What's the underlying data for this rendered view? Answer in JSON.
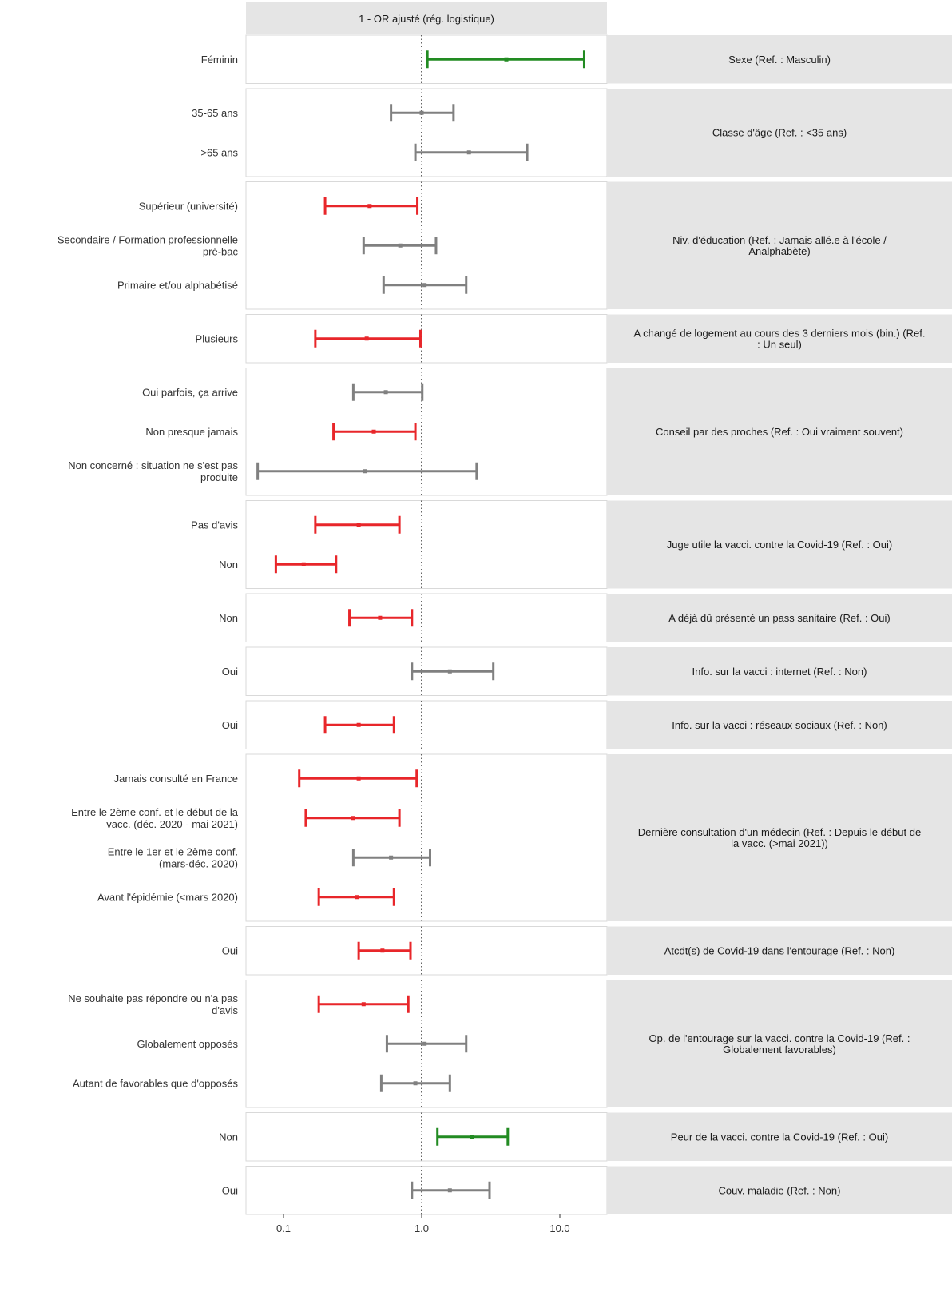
{
  "chart_data": {
    "type": "forest",
    "title": "1 - OR ajusté (rég. logistique)",
    "x_scale": "log",
    "xlim": [
      0.06,
      20
    ],
    "x_ticks": [
      {
        "value": 0.1,
        "label": "0.1"
      },
      {
        "value": 1.0,
        "label": "1.0"
      },
      {
        "value": 10.0,
        "label": "10.0"
      }
    ],
    "reference_line": 1.0,
    "colors": {
      "significant_high": "#228B22",
      "significant_low": "#E8262A",
      "not_significant": "#808080",
      "strip_background": "#E5E5E5",
      "panel_border": "#D9D9D9"
    },
    "groups": [
      {
        "label": "Sexe (Ref. : Masculin)",
        "rows": [
          {
            "label": "Féminin",
            "or": 4.1,
            "low": 1.1,
            "high": 15.0,
            "color": "significant_high"
          }
        ]
      },
      {
        "label": "Classe d'âge (Ref. : <35 ans)",
        "rows": [
          {
            "label": "35-65 ans",
            "or": 1.0,
            "low": 0.6,
            "high": 1.7,
            "color": "not_significant"
          },
          {
            "label": ">65 ans",
            "or": 2.2,
            "low": 0.9,
            "high": 5.8,
            "color": "not_significant"
          }
        ]
      },
      {
        "label": "Niv. d'éducation (Ref. : Jamais allé.e à l'école / Analphabète)",
        "rows": [
          {
            "label": "Supérieur (université)",
            "or": 0.42,
            "low": 0.2,
            "high": 0.93,
            "color": "significant_low"
          },
          {
            "label": "Secondaire / Formation professionnelle pré-bac",
            "or": 0.7,
            "low": 0.38,
            "high": 1.27,
            "color": "not_significant"
          },
          {
            "label": "Primaire et/ou alphabétisé",
            "or": 1.05,
            "low": 0.53,
            "high": 2.1,
            "color": "not_significant"
          }
        ]
      },
      {
        "label": "A changé de logement au cours des 3 derniers mois (bin.) (Ref. : Un seul)",
        "rows": [
          {
            "label": "Plusieurs",
            "or": 0.4,
            "low": 0.17,
            "high": 0.98,
            "color": "significant_low"
          }
        ]
      },
      {
        "label": "Conseil par des proches (Ref. : Oui vraiment souvent)",
        "rows": [
          {
            "label": "Oui parfois, ça arrive",
            "or": 0.55,
            "low": 0.32,
            "high": 1.01,
            "color": "not_significant"
          },
          {
            "label": "Non presque jamais",
            "or": 0.45,
            "low": 0.23,
            "high": 0.9,
            "color": "significant_low"
          },
          {
            "label": "Non concerné : situation ne s'est pas produite",
            "or": 0.39,
            "low": 0.065,
            "high": 2.5,
            "color": "not_significant"
          }
        ]
      },
      {
        "label": "Juge utile la vacci. contre la Covid-19 (Ref. : Oui)",
        "rows": [
          {
            "label": "Pas d'avis",
            "or": 0.35,
            "low": 0.17,
            "high": 0.69,
            "color": "significant_low"
          },
          {
            "label": "Non",
            "or": 0.14,
            "low": 0.088,
            "high": 0.24,
            "color": "significant_low"
          }
        ]
      },
      {
        "label": "A déjà dû présenté un pass sanitaire (Ref. : Oui)",
        "rows": [
          {
            "label": "Non",
            "or": 0.5,
            "low": 0.3,
            "high": 0.85,
            "color": "significant_low"
          }
        ]
      },
      {
        "label": "Info. sur la vacci : internet (Ref. : Non)",
        "rows": [
          {
            "label": "Oui",
            "or": 1.6,
            "low": 0.85,
            "high": 3.3,
            "color": "not_significant"
          }
        ]
      },
      {
        "label": "Info. sur la vacci : réseaux sociaux (Ref. : Non)",
        "rows": [
          {
            "label": "Oui",
            "or": 0.35,
            "low": 0.2,
            "high": 0.63,
            "color": "significant_low"
          }
        ]
      },
      {
        "label": "Dernière consultation d'un médecin (Ref. : Depuis le début de la vacc. (>mai 2021))",
        "rows": [
          {
            "label": "Jamais consulté en France",
            "or": 0.35,
            "low": 0.13,
            "high": 0.92,
            "color": "significant_low"
          },
          {
            "label": "Entre le 2ème conf. et le début de la vacc. (déc. 2020 - mai 2021)",
            "or": 0.32,
            "low": 0.145,
            "high": 0.69,
            "color": "significant_low"
          },
          {
            "label": "Entre le 1er et le 2ème conf. (mars-déc. 2020)",
            "or": 0.6,
            "low": 0.32,
            "high": 1.15,
            "color": "not_significant"
          },
          {
            "label": "Avant l'épidémie (<mars 2020)",
            "or": 0.34,
            "low": 0.18,
            "high": 0.63,
            "color": "significant_low"
          }
        ]
      },
      {
        "label": "Atcdt(s) de Covid-19 dans l'entourage (Ref. : Non)",
        "rows": [
          {
            "label": "Oui",
            "or": 0.52,
            "low": 0.35,
            "high": 0.83,
            "color": "significant_low"
          }
        ]
      },
      {
        "label": "Op. de l'entourage sur la vacci. contre la Covid-19 (Ref. : Globalement favorables)",
        "rows": [
          {
            "label": "Ne souhaite pas répondre ou n'a pas d'avis",
            "or": 0.38,
            "low": 0.18,
            "high": 0.8,
            "color": "significant_low"
          },
          {
            "label": "Globalement opposés",
            "or": 1.05,
            "low": 0.56,
            "high": 2.1,
            "color": "not_significant"
          },
          {
            "label": "Autant de favorables que d'opposés",
            "or": 0.9,
            "low": 0.51,
            "high": 1.6,
            "color": "not_significant"
          }
        ]
      },
      {
        "label": "Peur de la vacci. contre la Covid-19 (Ref. : Oui)",
        "rows": [
          {
            "label": "Non",
            "or": 2.3,
            "low": 1.3,
            "high": 4.2,
            "color": "significant_high"
          }
        ]
      },
      {
        "label": "Couv. maladie (Ref. : Non)",
        "rows": [
          {
            "label": "Oui",
            "or": 1.6,
            "low": 0.85,
            "high": 3.1,
            "color": "not_significant"
          }
        ]
      }
    ]
  }
}
